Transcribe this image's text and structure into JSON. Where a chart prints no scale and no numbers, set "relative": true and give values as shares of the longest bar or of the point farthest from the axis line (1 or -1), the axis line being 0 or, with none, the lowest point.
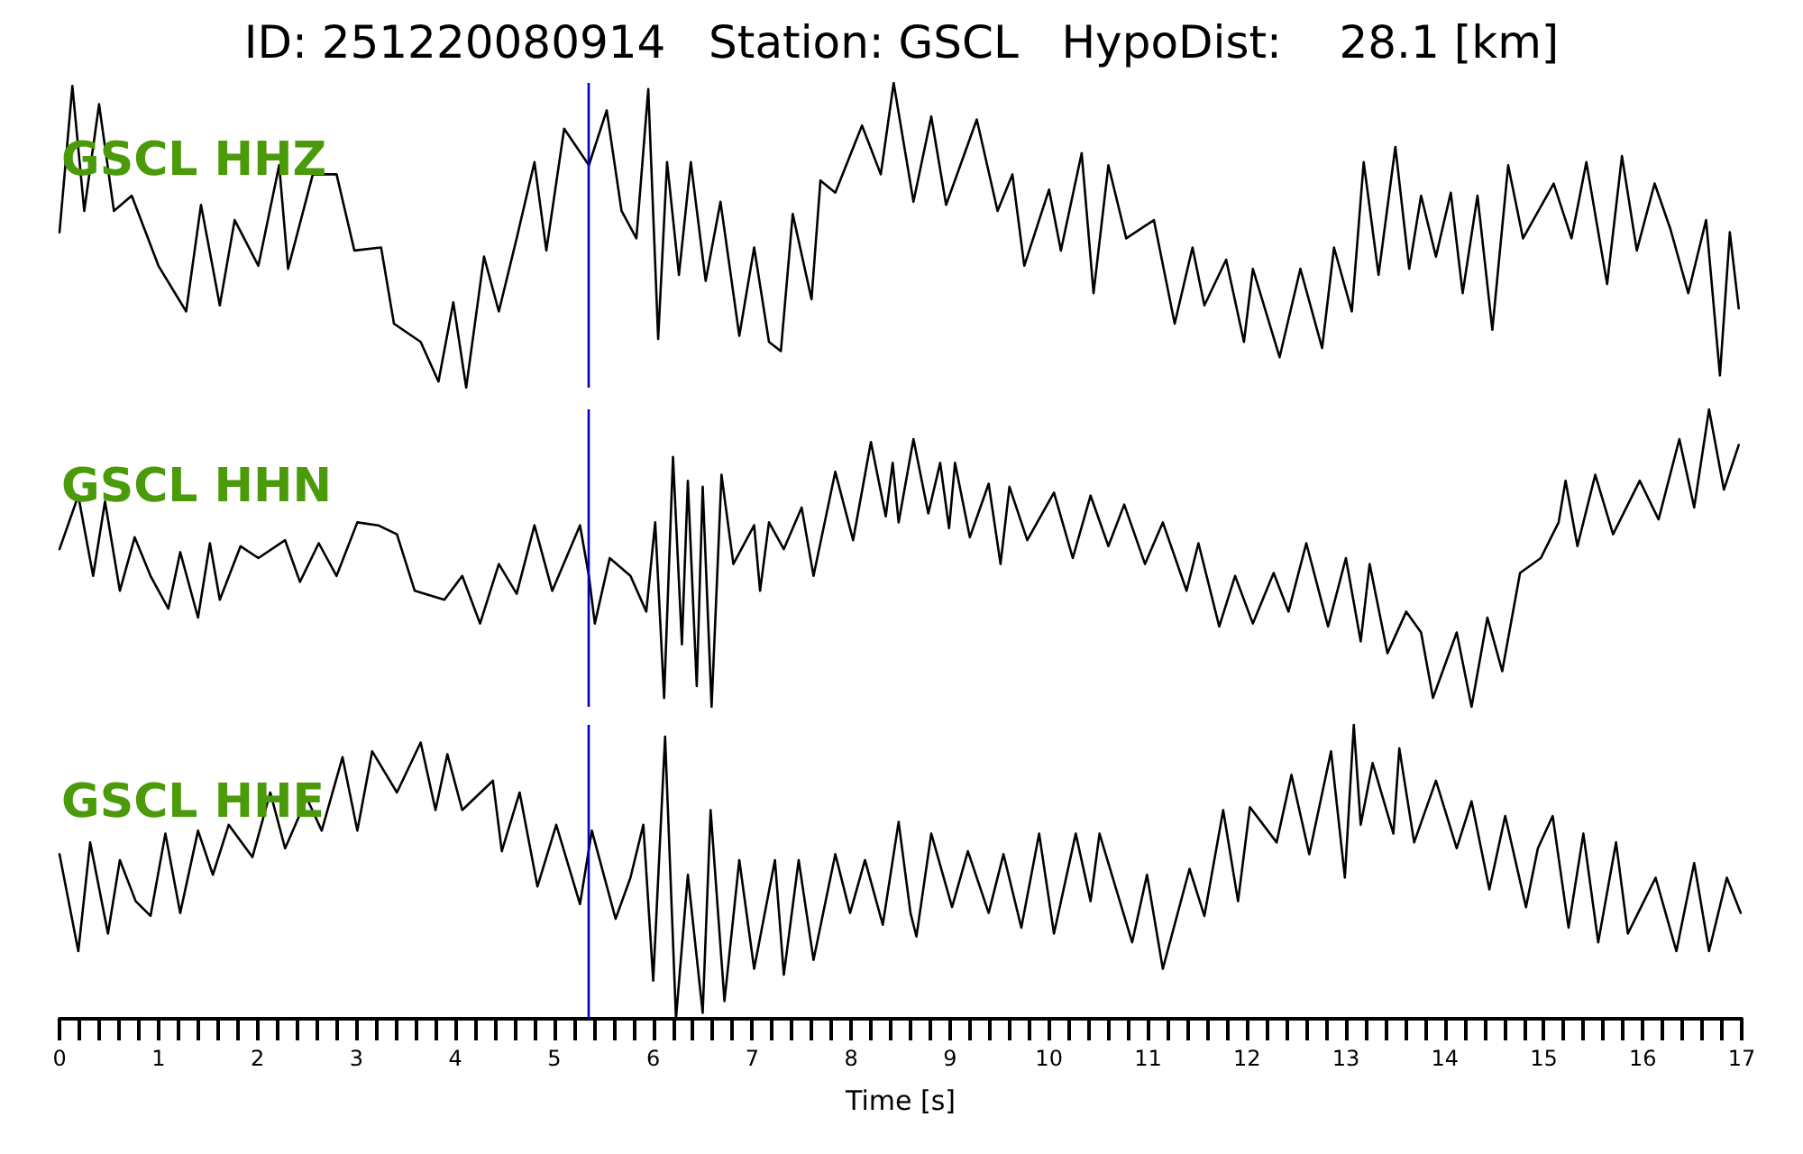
{
  "chart_data": [
    {
      "type": "line",
      "title": "ID: 251220080914   Station: GSCL   HypoDist:    28.1 [km]",
      "relative": true,
      "marker": "none",
      "line_style": "solid",
      "tick_labels": false,
      "xlim": [
        0,
        17
      ],
      "annotations": [
        "GSCL HHZ"
      ],
      "ref_lines": [
        {
          "axis": "x",
          "value": 5.35,
          "color": "#0000cc"
        }
      ],
      "series": [
        {
          "color": "#000000",
          "x": [
            0,
            0.13,
            0.25,
            0.4,
            0.55,
            0.73,
            1.0,
            1.28,
            1.43,
            1.62,
            1.77,
            2.01,
            2.22,
            2.31,
            2.56,
            2.8,
            2.98,
            3.25,
            3.38,
            3.65,
            3.83,
            3.98,
            4.11,
            4.29,
            4.44,
            4.62,
            4.8,
            4.92,
            5.1,
            5.35,
            5.53,
            5.68,
            5.83,
            5.95,
            6.05,
            6.14,
            6.26,
            6.38,
            6.53,
            6.68,
            6.87,
            7.02,
            7.17,
            7.29,
            7.41,
            7.6,
            7.69,
            7.84,
            8.11,
            8.3,
            8.43,
            8.63,
            8.81,
            8.96,
            9.27,
            9.48,
            9.63,
            9.75,
            10.0,
            10.12,
            10.33,
            10.45,
            10.6,
            10.78,
            11.06,
            11.27,
            11.45,
            11.57,
            11.79,
            11.97,
            12.06,
            12.33,
            12.54,
            12.76,
            12.88,
            13.06,
            13.18,
            13.33,
            13.5,
            13.64,
            13.76,
            13.91,
            14.06,
            14.18,
            14.33,
            14.48,
            14.64,
            14.79,
            15.1,
            15.28,
            15.43,
            15.64,
            15.79,
            15.94,
            16.12,
            16.28,
            16.46,
            16.64,
            16.78,
            16.88,
            16.97
          ],
          "values": [
            0.51,
            0.99,
            0.58,
            0.93,
            0.58,
            0.63,
            0.4,
            0.25,
            0.6,
            0.27,
            0.55,
            0.4,
            0.73,
            0.39,
            0.7,
            0.7,
            0.45,
            0.46,
            0.21,
            0.15,
            0.02,
            0.28,
            0,
            0.43,
            0.25,
            0.49,
            0.74,
            0.45,
            0.85,
            0.73,
            0.91,
            0.58,
            0.49,
            0.98,
            0.16,
            0.74,
            0.37,
            0.74,
            0.35,
            0.61,
            0.17,
            0.46,
            0.15,
            0.12,
            0.57,
            0.29,
            0.68,
            0.64,
            0.86,
            0.7,
            1,
            0.61,
            0.89,
            0.6,
            0.88,
            0.58,
            0.7,
            0.4,
            0.65,
            0.45,
            0.77,
            0.31,
            0.73,
            0.49,
            0.55,
            0.21,
            0.46,
            0.27,
            0.42,
            0.15,
            0.39,
            0.1,
            0.39,
            0.13,
            0.46,
            0.25,
            0.74,
            0.37,
            0.79,
            0.39,
            0.63,
            0.43,
            0.64,
            0.31,
            0.63,
            0.19,
            0.73,
            0.49,
            0.67,
            0.49,
            0.74,
            0.34,
            0.76,
            0.45,
            0.67,
            0.52,
            0.31,
            0.55,
            0.04,
            0.51,
            0.26
          ]
        }
      ]
    },
    {
      "type": "line",
      "relative": true,
      "marker": "none",
      "line_style": "solid",
      "tick_labels": false,
      "xlim": [
        0,
        17
      ],
      "annotations": [
        "GSCL HHN"
      ],
      "ref_lines": [
        {
          "axis": "x",
          "value": 5.35,
          "color": "#0000cc"
        }
      ],
      "series": [
        {
          "color": "#000000",
          "x": [
            0,
            0.19,
            0.34,
            0.46,
            0.61,
            0.76,
            0.92,
            1.1,
            1.22,
            1.4,
            1.52,
            1.62,
            1.83,
            2.01,
            2.28,
            2.43,
            2.62,
            2.8,
            3.01,
            3.22,
            3.41,
            3.59,
            3.89,
            4.07,
            4.25,
            4.44,
            4.62,
            4.8,
            4.98,
            5.26,
            5.35,
            5.41,
            5.56,
            5.77,
            5.93,
            6.02,
            6.11,
            6.2,
            6.29,
            6.35,
            6.44,
            6.5,
            6.59,
            6.69,
            6.81,
            7.02,
            7.08,
            7.17,
            7.32,
            7.5,
            7.62,
            7.84,
            8.02,
            8.2,
            8.35,
            8.42,
            8.48,
            8.63,
            8.78,
            8.9,
            8.99,
            9.05,
            9.2,
            9.39,
            9.51,
            9.6,
            9.78,
            10.05,
            10.24,
            10.42,
            10.6,
            10.76,
            10.97,
            11.15,
            11.39,
            11.51,
            11.72,
            11.88,
            12.06,
            12.27,
            12.42,
            12.6,
            12.82,
            13.0,
            13.15,
            13.24,
            13.42,
            13.61,
            13.76,
            13.88,
            14.12,
            14.27,
            14.43,
            14.58,
            14.76,
            14.97,
            15.06,
            15.15,
            15.22,
            15.34,
            15.52,
            15.7,
            15.97,
            16.16,
            16.37,
            16.52,
            16.67,
            16.82,
            16.97
          ],
          "values": [
            0.53,
            0.71,
            0.44,
            0.69,
            0.39,
            0.57,
            0.44,
            0.33,
            0.52,
            0.3,
            0.55,
            0.36,
            0.54,
            0.5,
            0.56,
            0.42,
            0.55,
            0.44,
            0.62,
            0.61,
            0.58,
            0.39,
            0.36,
            0.44,
            0.28,
            0.48,
            0.38,
            0.61,
            0.39,
            0.61,
            0.44,
            0.28,
            0.5,
            0.44,
            0.32,
            0.62,
            0.03,
            0.84,
            0.21,
            0.76,
            0.07,
            0.74,
            0,
            0.78,
            0.48,
            0.61,
            0.39,
            0.62,
            0.53,
            0.67,
            0.44,
            0.79,
            0.56,
            0.89,
            0.64,
            0.82,
            0.62,
            0.9,
            0.65,
            0.82,
            0.6,
            0.82,
            0.57,
            0.75,
            0.48,
            0.74,
            0.56,
            0.72,
            0.5,
            0.71,
            0.54,
            0.68,
            0.48,
            0.62,
            0.39,
            0.55,
            0.27,
            0.44,
            0.28,
            0.45,
            0.32,
            0.55,
            0.27,
            0.5,
            0.22,
            0.48,
            0.18,
            0.32,
            0.25,
            0.03,
            0.25,
            0,
            0.3,
            0.12,
            0.45,
            0.5,
            0.56,
            0.62,
            0.76,
            0.54,
            0.78,
            0.58,
            0.76,
            0.63,
            0.9,
            0.67,
            1,
            0.73,
            0.88
          ]
        }
      ]
    },
    {
      "type": "line",
      "relative": true,
      "marker": "none",
      "line_style": "solid",
      "tick_labels": "x",
      "xlim": [
        0,
        17
      ],
      "xlabel": "Time [s]",
      "xticks": [
        0,
        {
          "value": 0.2,
          "label": null
        },
        {
          "value": 0.4,
          "label": null
        },
        {
          "value": 0.6,
          "label": null
        },
        {
          "value": 0.8,
          "label": null
        },
        1,
        {
          "value": 1.2,
          "label": null
        },
        {
          "value": 1.4,
          "label": null
        },
        {
          "value": 1.6,
          "label": null
        },
        {
          "value": 1.8,
          "label": null
        },
        2,
        {
          "value": 2.2,
          "label": null
        },
        {
          "value": 2.4,
          "label": null
        },
        {
          "value": 2.6,
          "label": null
        },
        {
          "value": 2.8,
          "label": null
        },
        3,
        {
          "value": 3.2,
          "label": null
        },
        {
          "value": 3.4,
          "label": null
        },
        {
          "value": 3.6,
          "label": null
        },
        {
          "value": 3.8,
          "label": null
        },
        4,
        {
          "value": 4.2,
          "label": null
        },
        {
          "value": 4.4,
          "label": null
        },
        {
          "value": 4.6,
          "label": null
        },
        {
          "value": 4.8,
          "label": null
        },
        5,
        {
          "value": 5.2,
          "label": null
        },
        {
          "value": 5.4,
          "label": null
        },
        {
          "value": 5.6,
          "label": null
        },
        {
          "value": 5.8,
          "label": null
        },
        6,
        {
          "value": 6.2,
          "label": null
        },
        {
          "value": 6.4,
          "label": null
        },
        {
          "value": 6.6,
          "label": null
        },
        {
          "value": 6.8,
          "label": null
        },
        7,
        {
          "value": 7.2,
          "label": null
        },
        {
          "value": 7.4,
          "label": null
        },
        {
          "value": 7.6,
          "label": null
        },
        {
          "value": 7.8,
          "label": null
        },
        8,
        {
          "value": 8.2,
          "label": null
        },
        {
          "value": 8.4,
          "label": null
        },
        {
          "value": 8.6,
          "label": null
        },
        {
          "value": 8.8,
          "label": null
        },
        9,
        {
          "value": 9.2,
          "label": null
        },
        {
          "value": 9.4,
          "label": null
        },
        {
          "value": 9.6,
          "label": null
        },
        {
          "value": 9.8,
          "label": null
        },
        10,
        {
          "value": 10.2,
          "label": null
        },
        {
          "value": 10.4,
          "label": null
        },
        {
          "value": 10.6,
          "label": null
        },
        {
          "value": 10.8,
          "label": null
        },
        11,
        {
          "value": 11.2,
          "label": null
        },
        {
          "value": 11.4,
          "label": null
        },
        {
          "value": 11.6,
          "label": null
        },
        {
          "value": 11.8,
          "label": null
        },
        12,
        {
          "value": 12.2,
          "label": null
        },
        {
          "value": 12.4,
          "label": null
        },
        {
          "value": 12.6,
          "label": null
        },
        {
          "value": 12.8,
          "label": null
        },
        13,
        {
          "value": 13.2,
          "label": null
        },
        {
          "value": 13.4,
          "label": null
        },
        {
          "value": 13.6,
          "label": null
        },
        {
          "value": 13.8,
          "label": null
        },
        14,
        {
          "value": 14.2,
          "label": null
        },
        {
          "value": 14.4,
          "label": null
        },
        {
          "value": 14.6,
          "label": null
        },
        {
          "value": 14.8,
          "label": null
        },
        15,
        {
          "value": 15.2,
          "label": null
        },
        {
          "value": 15.4,
          "label": null
        },
        {
          "value": 15.6,
          "label": null
        },
        {
          "value": 15.8,
          "label": null
        },
        16,
        {
          "value": 16.2,
          "label": null
        },
        {
          "value": 16.4,
          "label": null
        },
        {
          "value": 16.6,
          "label": null
        },
        {
          "value": 16.8,
          "label": null
        },
        17
      ],
      "annotations": [
        "GSCL HHE"
      ],
      "ref_lines": [
        {
          "axis": "x",
          "value": 5.35,
          "color": "#0000cc"
        }
      ],
      "series": [
        {
          "color": "#000000",
          "x": [
            0,
            0.19,
            0.31,
            0.49,
            0.61,
            0.77,
            0.92,
            1.07,
            1.22,
            1.4,
            1.55,
            1.71,
            1.95,
            2.13,
            2.28,
            2.5,
            2.65,
            2.86,
            3.01,
            3.16,
            3.41,
            3.65,
            3.8,
            3.92,
            4.07,
            4.38,
            4.47,
            4.65,
            4.83,
            5.02,
            5.26,
            5.38,
            5.62,
            5.77,
            5.9,
            6.0,
            6.12,
            6.23,
            6.35,
            6.5,
            6.58,
            6.72,
            6.87,
            7.02,
            7.23,
            7.32,
            7.47,
            7.62,
            7.84,
            7.99,
            8.14,
            8.32,
            8.48,
            8.6,
            8.66,
            8.81,
            9.02,
            9.18,
            9.39,
            9.54,
            9.72,
            9.9,
            10.05,
            10.27,
            10.42,
            10.51,
            10.84,
            10.99,
            11.15,
            11.42,
            11.57,
            11.76,
            11.91,
            12.03,
            12.3,
            12.45,
            12.63,
            12.85,
            12.99,
            13.08,
            13.15,
            13.27,
            13.48,
            13.54,
            13.69,
            13.91,
            14.12,
            14.27,
            14.45,
            14.61,
            14.82,
            14.94,
            15.09,
            15.25,
            15.4,
            15.55,
            15.73,
            15.85,
            16.13,
            16.34,
            16.52,
            16.67,
            16.85,
            16.99
          ],
          "values": [
            0.56,
            0.23,
            0.6,
            0.29,
            0.54,
            0.4,
            0.35,
            0.63,
            0.36,
            0.64,
            0.49,
            0.66,
            0.55,
            0.77,
            0.58,
            0.75,
            0.64,
            0.89,
            0.64,
            0.91,
            0.77,
            0.94,
            0.71,
            0.9,
            0.71,
            0.81,
            0.57,
            0.77,
            0.45,
            0.66,
            0.39,
            0.64,
            0.34,
            0.48,
            0.66,
            0.13,
            0.96,
            0,
            0.49,
            0.02,
            0.71,
            0.06,
            0.54,
            0.17,
            0.54,
            0.15,
            0.54,
            0.2,
            0.56,
            0.36,
            0.54,
            0.32,
            0.67,
            0.36,
            0.28,
            0.63,
            0.38,
            0.57,
            0.36,
            0.56,
            0.31,
            0.63,
            0.29,
            0.63,
            0.4,
            0.63,
            0.26,
            0.49,
            0.17,
            0.51,
            0.35,
            0.71,
            0.4,
            0.72,
            0.6,
            0.83,
            0.56,
            0.91,
            0.48,
            1,
            0.66,
            0.87,
            0.63,
            0.92,
            0.6,
            0.81,
            0.58,
            0.74,
            0.44,
            0.69,
            0.38,
            0.58,
            0.69,
            0.31,
            0.63,
            0.26,
            0.6,
            0.29,
            0.48,
            0.23,
            0.53,
            0.23,
            0.48,
            0.36
          ]
        }
      ]
    }
  ]
}
